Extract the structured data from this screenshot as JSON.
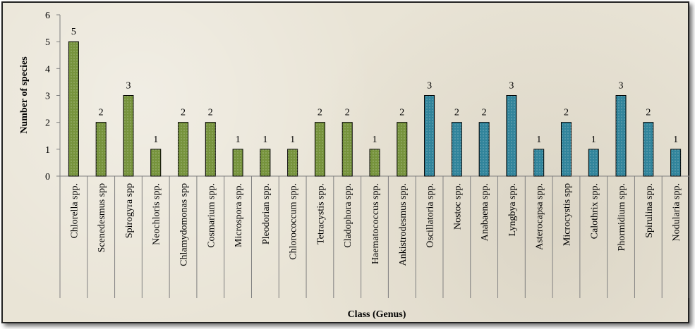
{
  "chart_data": {
    "type": "bar",
    "xlabel": "Class (Genus)",
    "ylabel": "Number of species",
    "ylim": [
      0,
      6
    ],
    "yticks": [
      0,
      1,
      2,
      3,
      4,
      5,
      6
    ],
    "grid": false,
    "legend": "none",
    "categories": [
      "Chlorella spp.",
      "Scenedesmus spp",
      "Spirogyra spp",
      "Neochloris spp.",
      "Chlamydomonas spp",
      "Cosmarium spp.",
      "Microspora spp.",
      "Pleodorian spp.",
      "Chlorococcum spp.",
      "Tetracystis spp.",
      "Cladophora spp.",
      "Haematococcus spp.",
      "Ankistrodesmus spp.",
      "Oscillatoria spp.",
      "Nostoc spp.",
      "Anabaena spp.",
      "Lyngbya spp.",
      "Asterocapsa spp.",
      "Microcystis spp",
      "Calothrix spp.",
      "Phormidium spp.",
      "Spirulina spp.",
      "Nodularia spp."
    ],
    "values": [
      5,
      2,
      3,
      1,
      2,
      2,
      1,
      1,
      1,
      2,
      2,
      1,
      2,
      3,
      2,
      2,
      3,
      1,
      2,
      1,
      3,
      2,
      1
    ],
    "bar_colors": [
      "#76933c",
      "#76933c",
      "#76933c",
      "#76933c",
      "#76933c",
      "#76933c",
      "#76933c",
      "#76933c",
      "#76933c",
      "#76933c",
      "#76933c",
      "#76933c",
      "#76933c",
      "#31849b",
      "#31849b",
      "#31849b",
      "#31849b",
      "#31849b",
      "#31849b",
      "#31849b",
      "#31849b",
      "#31849b",
      "#31849b"
    ],
    "data_labels": true
  }
}
